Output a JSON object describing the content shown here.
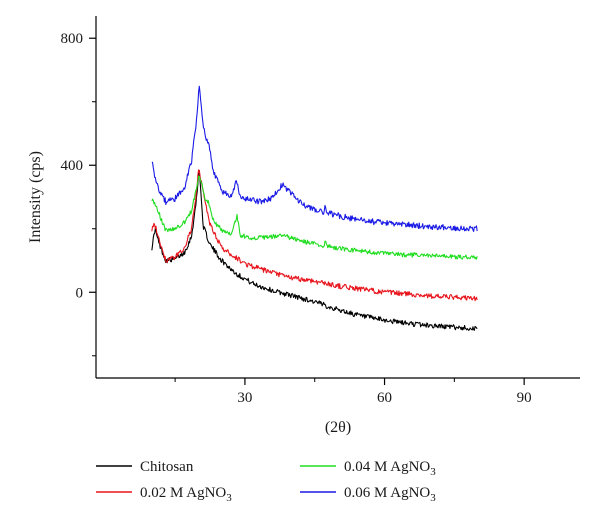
{
  "chart_data": {
    "type": "line",
    "xlabel": "(2θ)",
    "ylabel": "Intensity (cps)",
    "xlim": [
      -2,
      102
    ],
    "ylim": [
      -270,
      870
    ],
    "x_ticks": [
      30,
      60,
      90
    ],
    "y_ticks": [
      0,
      400,
      800
    ],
    "minor_x_ticks": [
      15,
      45,
      75
    ],
    "minor_y_ticks": [
      -200,
      200,
      600
    ],
    "grid": false,
    "legend_position": "bottom",
    "series": [
      {
        "name": "Chitosan",
        "color": "#000000",
        "noise": 8,
        "points": [
          [
            10,
            140
          ],
          [
            10.7,
            200
          ],
          [
            11.5,
            155
          ],
          [
            13,
            100
          ],
          [
            15,
            105
          ],
          [
            17,
            125
          ],
          [
            18.5,
            175
          ],
          [
            19.5,
            280
          ],
          [
            20.2,
            390
          ],
          [
            21,
            210
          ],
          [
            22.5,
            150
          ],
          [
            25,
            100
          ],
          [
            28,
            60
          ],
          [
            32,
            25
          ],
          [
            36,
            5
          ],
          [
            40,
            -10
          ],
          [
            45,
            -30
          ],
          [
            50,
            -55
          ],
          [
            55,
            -75
          ],
          [
            60,
            -88
          ],
          [
            65,
            -98
          ],
          [
            70,
            -105
          ],
          [
            75,
            -110
          ],
          [
            80,
            -115
          ]
        ]
      },
      {
        "name": "0.02 M AgNO3",
        "color": "#e8141c",
        "noise": 8,
        "points": [
          [
            10,
            195
          ],
          [
            10.6,
            215
          ],
          [
            11.5,
            170
          ],
          [
            13,
            100
          ],
          [
            15,
            110
          ],
          [
            17,
            140
          ],
          [
            18.5,
            200
          ],
          [
            19.5,
            300
          ],
          [
            20.1,
            395
          ],
          [
            20.8,
            330
          ],
          [
            21.6,
            280
          ],
          [
            22.3,
            220
          ],
          [
            25,
            140
          ],
          [
            30,
            90
          ],
          [
            35,
            65
          ],
          [
            40,
            45
          ],
          [
            45,
            35
          ],
          [
            50,
            20
          ],
          [
            55,
            10
          ],
          [
            60,
            0
          ],
          [
            65,
            -5
          ],
          [
            70,
            -12
          ],
          [
            75,
            -16
          ],
          [
            80,
            -20
          ]
        ]
      },
      {
        "name": "0.04 M AgNO3",
        "color": "#22dd22",
        "noise": 7,
        "points": [
          [
            10,
            290
          ],
          [
            11,
            270
          ],
          [
            12,
            230
          ],
          [
            13,
            195
          ],
          [
            15,
            200
          ],
          [
            17,
            220
          ],
          [
            18.5,
            255
          ],
          [
            19.5,
            320
          ],
          [
            20.1,
            375
          ],
          [
            20.7,
            345
          ],
          [
            21.5,
            290
          ],
          [
            22.3,
            280
          ],
          [
            23,
            230
          ],
          [
            25,
            195
          ],
          [
            27,
            185
          ],
          [
            28.3,
            240
          ],
          [
            29,
            180
          ],
          [
            32,
            170
          ],
          [
            36,
            175
          ],
          [
            38,
            180
          ],
          [
            40,
            170
          ],
          [
            44,
            155
          ],
          [
            47,
            145
          ],
          [
            47.3,
            170
          ],
          [
            47.6,
            145
          ],
          [
            52,
            135
          ],
          [
            56,
            128
          ],
          [
            60,
            122
          ],
          [
            65,
            118
          ],
          [
            70,
            115
          ],
          [
            75,
            112
          ],
          [
            80,
            110
          ]
        ]
      },
      {
        "name": "0.06 M AgNO3",
        "color": "#1a1ae6",
        "noise": 9,
        "points": [
          [
            10,
            415
          ],
          [
            10.5,
            370
          ],
          [
            11.5,
            320
          ],
          [
            13,
            285
          ],
          [
            15,
            295
          ],
          [
            17,
            330
          ],
          [
            18.5,
            410
          ],
          [
            19.5,
            530
          ],
          [
            20.2,
            655
          ],
          [
            20.8,
            560
          ],
          [
            21.5,
            480
          ],
          [
            22.3,
            470
          ],
          [
            23,
            390
          ],
          [
            25,
            320
          ],
          [
            27,
            300
          ],
          [
            28.2,
            355
          ],
          [
            28.8,
            300
          ],
          [
            31,
            290
          ],
          [
            34,
            285
          ],
          [
            36,
            300
          ],
          [
            38,
            340
          ],
          [
            40,
            310
          ],
          [
            43,
            270
          ],
          [
            47,
            250
          ],
          [
            47.3,
            275
          ],
          [
            47.6,
            250
          ],
          [
            52,
            235
          ],
          [
            56,
            225
          ],
          [
            60,
            218
          ],
          [
            65,
            212
          ],
          [
            70,
            207
          ],
          [
            75,
            203
          ],
          [
            80,
            200
          ]
        ]
      }
    ]
  },
  "legend": [
    {
      "base": "Chitosan",
      "sub": "",
      "color": "#000000"
    },
    {
      "base": "0.02 M AgNO",
      "sub": "3",
      "color": "#e8141c"
    },
    {
      "base": "0.04 M AgNO",
      "sub": "3",
      "color": "#22dd22"
    },
    {
      "base": "0.06 M AgNO",
      "sub": "3",
      "color": "#1a1ae6"
    }
  ]
}
